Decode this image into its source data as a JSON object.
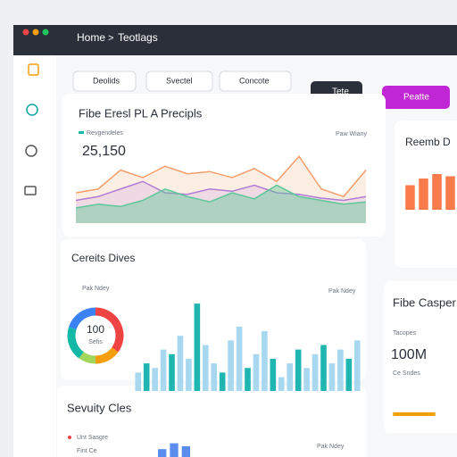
{
  "header": {
    "breadcrumb": [
      "Home",
      "Teotlags"
    ]
  },
  "toolbar": {
    "filters": [
      "Deolids",
      "Svectel",
      "Concote"
    ],
    "buttons": [
      "Tete",
      "Peatte"
    ]
  },
  "cards": [
    {
      "title": "Fibe Eresl PL A Precipls",
      "legend": "Paw Wiany",
      "stat_label": "Revgendeles",
      "stat": "25,150",
      "chart": {
        "type": "area",
        "ylim": [
          0,
          100
        ],
        "series": [
          {
            "color": "#f59e6b",
            "values": [
              40,
              45,
              70,
              60,
              75,
              65,
              68,
              60,
              72,
              55,
              88,
              45,
              35,
              70
            ]
          },
          {
            "color": "#b07cd6",
            "values": [
              30,
              35,
              45,
              55,
              40,
              38,
              45,
              42,
              50,
              40,
              38,
              33,
              30,
              35
            ]
          },
          {
            "color": "#5fc79a",
            "values": [
              20,
              25,
              22,
              30,
              45,
              35,
              28,
              40,
              32,
              50,
              35,
              30,
              25,
              28
            ]
          }
        ]
      }
    },
    {
      "title": "Reemb D",
      "chart": {
        "type": "bar",
        "ylim": [
          0,
          100
        ],
        "color": "#f97a4a",
        "values": [
          55,
          70,
          80,
          75
        ]
      }
    },
    {
      "title": "Cereits Dives",
      "legend": "Pak Ndey",
      "donut": {
        "center": "100",
        "sub": "Sefis",
        "values": [
          35,
          15,
          10,
          20,
          20
        ],
        "colors": [
          "#ef4444",
          "#f59e0b",
          "#a3d65c",
          "#14b8a6",
          "#3b82f6"
        ]
      },
      "chart": {
        "type": "bar",
        "ylim": [
          0,
          100
        ],
        "colors": [
          "#a7d8f0",
          "#1fb5b0"
        ],
        "values": [
          20,
          30,
          25,
          45,
          40,
          60,
          35,
          95,
          50,
          30,
          20,
          55,
          70,
          25,
          40,
          65,
          35,
          15,
          30,
          45,
          25,
          40,
          50,
          30,
          45,
          35,
          55
        ]
      }
    },
    {
      "title": "Fibe Casper",
      "stat_label": "Tacopes",
      "stat": "100M",
      "stat_sub": "Ce Sndes"
    },
    {
      "title": "Sevuity Cles",
      "rows": [
        "Unt Sasgre",
        "Fint Ce"
      ],
      "legend": "Pak Ndey",
      "chart": {
        "type": "bar",
        "ylim": [
          0,
          100
        ],
        "color": "#5b8def",
        "values": [
          40,
          70,
          55
        ]
      }
    }
  ]
}
